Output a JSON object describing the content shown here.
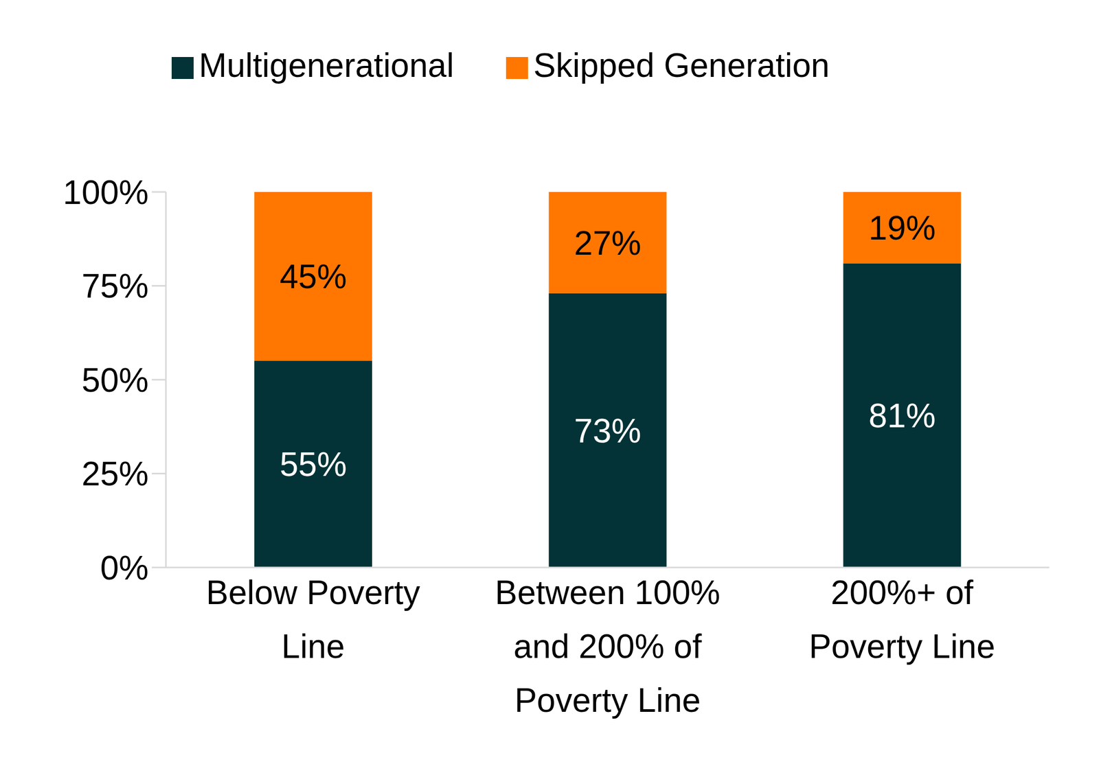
{
  "chart_data": {
    "type": "bar",
    "stacked": true,
    "categories": [
      "Below Poverty Line",
      "Between 100% and 200% of Poverty Line",
      "200%+ of Poverty Line"
    ],
    "series": [
      {
        "name": "Multigenerational",
        "color": "#033336",
        "values": [
          55,
          73,
          81
        ],
        "value_labels": [
          "55%",
          "73%",
          "81%"
        ]
      },
      {
        "name": "Skipped Generation",
        "color": "#ff7700",
        "values": [
          45,
          27,
          19
        ],
        "value_labels": [
          "45%",
          "27%",
          "19%"
        ]
      }
    ],
    "ylim": [
      0,
      100
    ],
    "yticks": [
      {
        "value": 0,
        "label": "0%"
      },
      {
        "value": 25,
        "label": "25%"
      },
      {
        "value": 50,
        "label": "50%"
      },
      {
        "value": 75,
        "label": "75%"
      },
      {
        "value": 100,
        "label": "100%"
      }
    ],
    "grid": false,
    "legend": "top",
    "data_labels": true
  }
}
